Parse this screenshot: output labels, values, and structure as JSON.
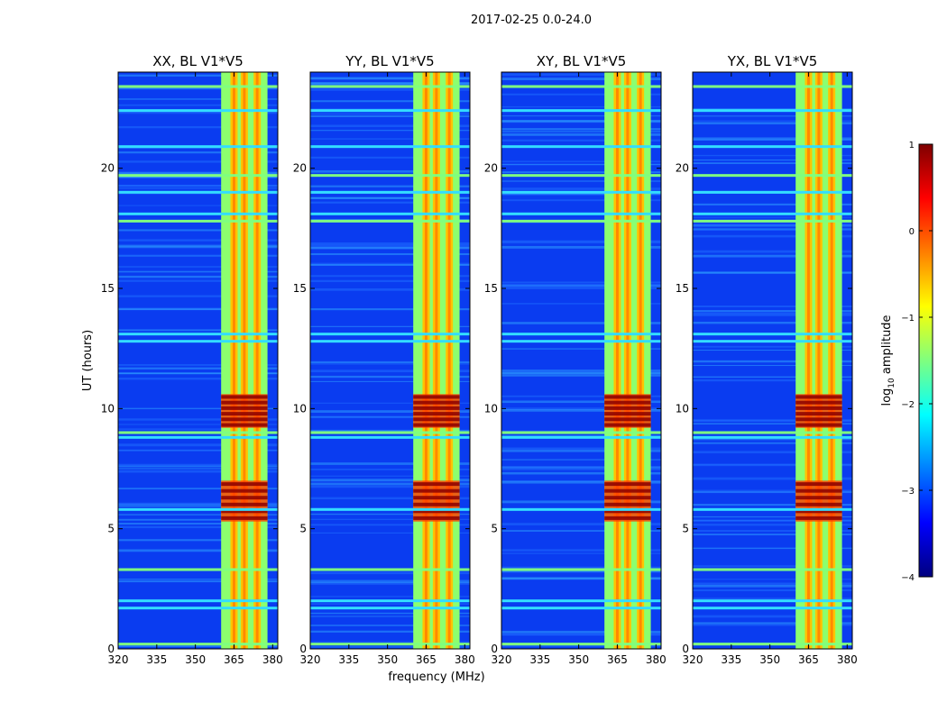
{
  "figure": {
    "suptitle": "2017-02-25 0.0-24.0"
  },
  "chart_data": {
    "type": "heatmap",
    "ylabel": "UT (hours)",
    "xlabel": "frequency (MHz)",
    "xlim": [
      320,
      382
    ],
    "ylim": [
      0,
      24
    ],
    "xticks": [
      "320",
      "335",
      "350",
      "365",
      "380"
    ],
    "xtick_values": [
      320,
      335,
      350,
      365,
      380
    ],
    "yticks": [
      "0",
      "5",
      "10",
      "15",
      "20"
    ],
    "ytick_values": [
      0,
      5,
      10,
      15,
      20
    ],
    "panels": [
      {
        "title": "XX, BL V1*V5",
        "polarization": "XX"
      },
      {
        "title": "YY, BL V1*V5",
        "polarization": "YY"
      },
      {
        "title": "XY, BL V1*V5",
        "polarization": "XY"
      },
      {
        "title": "YX, BL V1*V5",
        "polarization": "YX"
      }
    ],
    "colorbar": {
      "label": "log",
      "label_sub": "10",
      "label_rest": " amplitude",
      "range": [
        -4,
        1
      ],
      "ticks": [
        "1",
        "0",
        "−1",
        "−2",
        "−3",
        "−4"
      ],
      "tick_values": [
        1,
        0,
        -1,
        -2,
        -3,
        -4
      ],
      "colormap": "jet"
    },
    "rfi_band_mhz": [
      360,
      378
    ],
    "rfi_channels_mhz": [
      365,
      369,
      374
    ],
    "strong_rfi_hours": [
      [
        5.3,
        7.0
      ],
      [
        9.2,
        10.6
      ]
    ],
    "flagged_hours": [
      0.2,
      1.7,
      2.0,
      3.3,
      5.8,
      8.8,
      9.0,
      12.8,
      13.1,
      17.8,
      18.1,
      19.0,
      19.7,
      20.9,
      22.4,
      23.4
    ]
  },
  "colors": {
    "jet": [
      "#00007f",
      "#0000ff",
      "#007fff",
      "#00ffff",
      "#7fff7f",
      "#ffff00",
      "#ff7f00",
      "#ff0000",
      "#7f0000"
    ]
  }
}
